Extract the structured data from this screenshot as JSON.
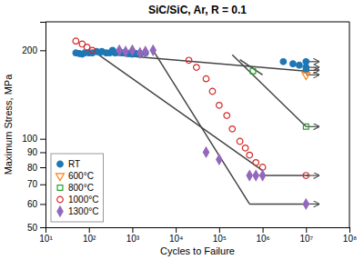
{
  "chart_data": {
    "type": "scatter",
    "title": "SiC/SiC, Ar, R = 0.1",
    "xlabel": "Cycles to Failure",
    "ylabel": "Maximum Stress, MPa",
    "log": true,
    "grid": false,
    "legend": "lower left",
    "xlim": [
      10,
      100000000
    ],
    "ylim": [
      50,
      250
    ],
    "xticks": [
      {
        "value": 10,
        "label": "10¹"
      },
      {
        "value": 100,
        "label": "10²"
      },
      {
        "value": 1000,
        "label": "10³"
      },
      {
        "value": 10000,
        "label": "10⁴"
      },
      {
        "value": 100000,
        "label": "10⁵"
      },
      {
        "value": 1000000,
        "label": "10⁶"
      },
      {
        "value": 10000000,
        "label": "10⁷"
      },
      {
        "value": 100000000,
        "label": "10⁸"
      }
    ],
    "yticks": [
      50,
      60,
      70,
      80,
      90,
      100,
      200
    ],
    "series": [
      {
        "name": "RT",
        "type": "scatter",
        "marker": "circle",
        "x": [
          50,
          60,
          70,
          80,
          100,
          120,
          150,
          180,
          200,
          250,
          300,
          350,
          400,
          500,
          600,
          700,
          800,
          900,
          1000,
          1200,
          1500,
          2000,
          3000000,
          5000000,
          7000000,
          10000000,
          10000000,
          10000000
        ],
        "values": [
          196,
          195,
          194,
          196,
          196,
          196,
          198,
          197,
          198,
          196,
          196,
          200,
          196,
          198,
          196,
          196,
          195,
          195,
          194,
          195,
          195,
          196,
          183,
          180,
          178,
          183,
          175,
          171
        ]
      },
      {
        "name": "600°C",
        "type": "scatter",
        "marker": "triangle-down-open",
        "x": [
          10000000
        ],
        "values": [
          165
        ]
      },
      {
        "name": "800°C",
        "type": "scatter",
        "marker": "square-open",
        "x": [
          600000,
          10000000
        ],
        "values": [
          170,
          110
        ]
      },
      {
        "name": "1000°C",
        "type": "scatter",
        "marker": "circle-open",
        "x": [
          50,
          70,
          90,
          120,
          20000,
          30000,
          50000,
          70000,
          100000,
          150000,
          200000,
          300000,
          400000,
          500000,
          700000,
          1000000,
          10000000
        ],
        "values": [
          215,
          210,
          205,
          200,
          185,
          175,
          160,
          145,
          130,
          120,
          108,
          98,
          93,
          88,
          83,
          80,
          75
        ]
      },
      {
        "name": "1300°C",
        "type": "scatter",
        "marker": "diamond",
        "x": [
          500,
          700,
          1000,
          1500,
          2000,
          3000,
          50000,
          100000,
          500000,
          700000,
          1000000,
          10000000
        ],
        "values": [
          200,
          198,
          200,
          196,
          198,
          200,
          90,
          85,
          75,
          75,
          75,
          60
        ]
      },
      {
        "type": "line",
        "line_style": "solid",
        "x": [
          50,
          10000000
        ],
        "values": [
          198,
          170
        ]
      },
      {
        "type": "line",
        "line_style": "solid",
        "x": [
          300000,
          1000000
        ],
        "values": [
          186,
          165
        ]
      },
      {
        "type": "line",
        "line_style": "solid",
        "x": [
          200000,
          10000000
        ],
        "values": [
          193,
          110
        ]
      },
      {
        "type": "line",
        "line_style": "solid",
        "x": [
          120,
          1000000
        ],
        "values": [
          200,
          78
        ]
      },
      {
        "type": "line",
        "line_style": "solid",
        "x": [
          1000000,
          11500000
        ],
        "values": [
          75,
          75
        ]
      },
      {
        "type": "line",
        "line_style": "solid",
        "x": [
          3000,
          500000
        ],
        "values": [
          200,
          60
        ]
      },
      {
        "type": "line",
        "line_style": "solid",
        "x": [
          500000,
          11500000
        ],
        "values": [
          60,
          60
        ]
      },
      {
        "type": "arrow",
        "x": [
          10000000,
          20000000
        ],
        "values": [
          183,
          183
        ]
      },
      {
        "type": "arrow",
        "x": [
          10000000,
          20000000
        ],
        "values": [
          175,
          175
        ]
      },
      {
        "type": "arrow",
        "x": [
          10000000,
          20000000
        ],
        "values": [
          171,
          171
        ]
      },
      {
        "type": "arrow",
        "x": [
          10000000,
          20000000
        ],
        "values": [
          165,
          165
        ]
      },
      {
        "type": "arrow",
        "x": [
          10000000,
          20000000
        ],
        "values": [
          110,
          110
        ]
      },
      {
        "type": "arrow",
        "x": [
          10000000,
          20000000
        ],
        "values": [
          75,
          75
        ]
      },
      {
        "type": "arrow",
        "x": [
          10000000,
          20000000
        ],
        "values": [
          60,
          60
        ]
      }
    ]
  }
}
